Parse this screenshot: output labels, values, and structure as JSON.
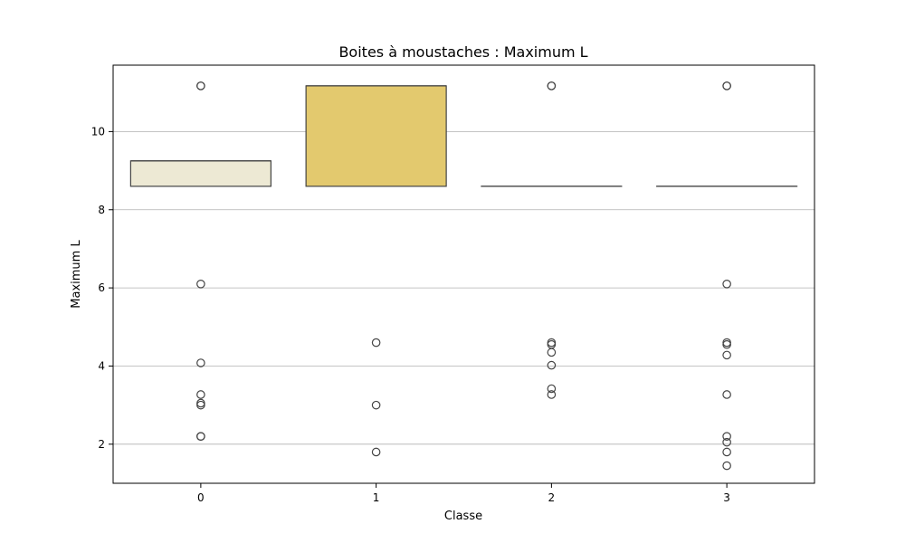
{
  "chart_data": {
    "type": "box",
    "title": "Boites à moustaches : Maximum L",
    "xlabel": "Classe",
    "ylabel": "Maximum L",
    "categories": [
      "0",
      "1",
      "2",
      "3"
    ],
    "ylim": [
      1.0,
      11.7
    ],
    "yticks": [
      2,
      4,
      6,
      8,
      10
    ],
    "grid": "y",
    "colors": {
      "box": [
        "#ede9d4",
        "#e3c96e",
        "#e6d28a",
        "#e6d28a"
      ],
      "edge": "#444444",
      "grid": "#b0b0b0"
    },
    "boxes": [
      {
        "category": "0",
        "q1": 8.6,
        "median": 9.25,
        "q3": 9.25,
        "whisker_low": 8.6,
        "whisker_high": 9.25,
        "outliers": [
          11.17,
          11.17,
          6.1,
          4.08,
          3.27,
          3.05,
          3.0,
          2.2,
          2.2
        ]
      },
      {
        "category": "1",
        "q1": 8.6,
        "median": 11.17,
        "q3": 11.17,
        "whisker_low": 8.6,
        "whisker_high": 11.17,
        "outliers": [
          4.6,
          3.0,
          1.8
        ]
      },
      {
        "category": "2",
        "q1": 8.6,
        "median": 8.6,
        "q3": 8.6,
        "whisker_low": 8.6,
        "whisker_high": 8.6,
        "outliers": [
          11.17,
          11.17,
          4.6,
          4.55,
          4.35,
          4.02,
          3.42,
          3.27
        ]
      },
      {
        "category": "3",
        "q1": 8.6,
        "median": 8.6,
        "q3": 8.6,
        "whisker_low": 8.6,
        "whisker_high": 8.6,
        "outliers": [
          11.17,
          11.17,
          6.1,
          4.6,
          4.55,
          4.28,
          3.27,
          2.2,
          2.05,
          1.8,
          1.45
        ]
      }
    ]
  }
}
